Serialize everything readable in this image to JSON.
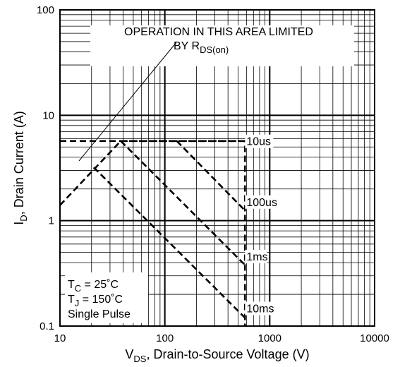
{
  "chart_data": {
    "type": "line",
    "xlabel": {
      "main": "V",
      "sub": "DS",
      "rest": ", Drain-to-Source Voltage (V)"
    },
    "ylabel": {
      "main": "I",
      "sub": "D",
      "rest": ", Drain Current (A)"
    },
    "xscale": "log",
    "yscale": "log",
    "xlim": [
      10,
      10000
    ],
    "ylim": [
      0.1,
      100
    ],
    "xticks": [
      10,
      100,
      1000,
      10000
    ],
    "xtick_labels": [
      "10",
      "100",
      "1000",
      "10000"
    ],
    "yticks": [
      0.1,
      1,
      10,
      100
    ],
    "ytick_labels": [
      "0.1",
      "1",
      "10",
      "100"
    ],
    "grid": true,
    "series": [
      {
        "name": "10us",
        "x": [
          10,
          38,
          580,
          580
        ],
        "y": [
          1.4,
          5.7,
          5.7,
          0.1
        ]
      },
      {
        "name": "100us",
        "x": [
          130,
          580
        ],
        "y": [
          5.7,
          1.25
        ]
      },
      {
        "name": "1ms",
        "x": [
          38,
          580
        ],
        "y": [
          5.7,
          0.38
        ]
      },
      {
        "name": "10ms",
        "x": [
          21,
          580
        ],
        "y": [
          3.2,
          0.12
        ]
      },
      {
        "name": "limit",
        "x": [
          10,
          580
        ],
        "y": [
          5.7,
          5.7
        ]
      }
    ],
    "series_labels": [
      {
        "text": "10us",
        "x": 600,
        "y": 5.2
      },
      {
        "text": "100us",
        "x": 600,
        "y": 1.38
      },
      {
        "text": "1ms",
        "x": 600,
        "y": 0.42
      },
      {
        "text": "10ms",
        "x": 600,
        "y": 0.135
      }
    ],
    "annotations": {
      "rds_line1": "OPERATION IN THIS AREA LIMITED",
      "rds_line2_main": "BY R",
      "rds_line2_sub": "DS(on)",
      "tc_main": "T",
      "tc_sub": "C",
      "tc_rest": " = 25˚C",
      "tj_main": "T",
      "tj_sub": "J",
      "tj_rest": " = 150˚C",
      "pulse": "Single Pulse"
    },
    "colors": {
      "line": "#000000",
      "grid": "#000000",
      "background": "#ffffff"
    }
  }
}
